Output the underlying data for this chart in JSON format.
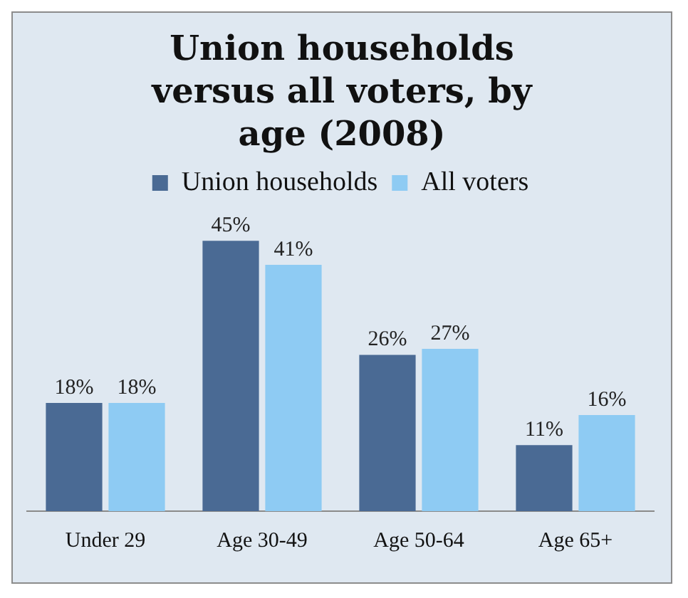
{
  "chart_data": {
    "type": "bar",
    "title": "Union households versus all voters, by age (2008)",
    "categories": [
      "Under 29",
      "Age 30-49",
      "Age 50-64",
      "Age 65+"
    ],
    "series": [
      {
        "name": "Union households",
        "color": "#4a6a94",
        "values": [
          18,
          45,
          26,
          11
        ],
        "value_labels": [
          "18%",
          "45%",
          "26%",
          "11%"
        ]
      },
      {
        "name": "All voters",
        "color": "#8ecbf3",
        "values": [
          18,
          41,
          27,
          16
        ],
        "value_labels": [
          "18%",
          "41%",
          "27%",
          "16%"
        ]
      }
    ],
    "legend": "top",
    "grid": false
  }
}
